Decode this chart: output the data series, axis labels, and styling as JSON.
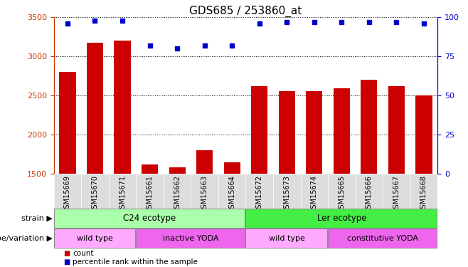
{
  "title": "GDS685 / 253860_at",
  "samples": [
    "GSM15669",
    "GSM15670",
    "GSM15671",
    "GSM15661",
    "GSM15662",
    "GSM15663",
    "GSM15664",
    "GSM15672",
    "GSM15673",
    "GSM15674",
    "GSM15665",
    "GSM15666",
    "GSM15667",
    "GSM15668"
  ],
  "counts": [
    2800,
    3175,
    3200,
    1620,
    1580,
    1800,
    1640,
    2620,
    2555,
    2555,
    2595,
    2700,
    2615,
    2500
  ],
  "percentiles": [
    96,
    98,
    98,
    82,
    80,
    82,
    82,
    96,
    97,
    97,
    97,
    97,
    97,
    96
  ],
  "ymin": 1500,
  "ymax": 3500,
  "yticks": [
    1500,
    2000,
    2500,
    3000,
    3500
  ],
  "right_yticks": [
    0,
    25,
    50,
    75,
    100
  ],
  "bar_color": "#cc0000",
  "dot_color": "#0000cc",
  "strain_groups": [
    {
      "label": "C24 ecotype",
      "start": 0,
      "end": 7,
      "color": "#aaffaa"
    },
    {
      "label": "Ler ecotype",
      "start": 7,
      "end": 14,
      "color": "#44ee44"
    }
  ],
  "genotype_groups": [
    {
      "label": "wild type",
      "start": 0,
      "end": 3,
      "color": "#ffaaff"
    },
    {
      "label": "inactive YODA",
      "start": 3,
      "end": 7,
      "color": "#ee66ee"
    },
    {
      "label": "wild type",
      "start": 7,
      "end": 10,
      "color": "#ffaaff"
    },
    {
      "label": "constitutive YODA",
      "start": 10,
      "end": 14,
      "color": "#ee66ee"
    }
  ],
  "strain_label": "strain",
  "genotype_label": "genotype/variation",
  "legend_count": "count",
  "legend_percentile": "percentile rank within the sample",
  "title_fontsize": 11,
  "tick_fontsize": 7,
  "axis_color_left": "#cc3300",
  "axis_color_right": "#0000cc",
  "xtick_bg": "#dddddd"
}
